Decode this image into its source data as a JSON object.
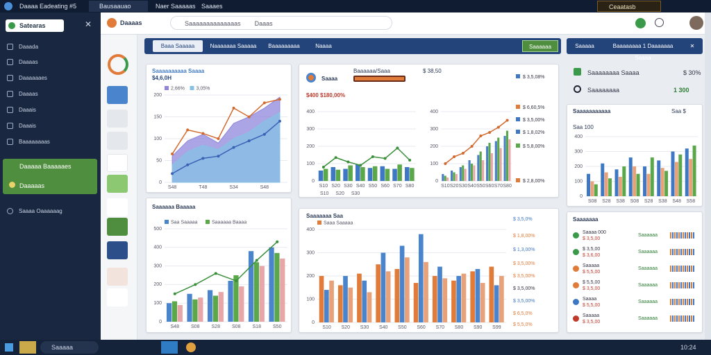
{
  "top_bar": {
    "tabs": [
      "Daaaa Eadeating #5",
      "Bausaauao",
      "Naer Saaaaas",
      "Saaaes"
    ],
    "account": "Ceaatasb"
  },
  "sidebar": {
    "search": "Satearas",
    "items": [
      "Daaada",
      "Daaaas",
      "Daaaaaaes",
      "Daaaas",
      "Daaais",
      "Daaais",
      "Baaaaaaaas"
    ],
    "active": [
      "Daaaaa Baaaaaes",
      "Daaaaas"
    ],
    "footer": "Saaaa Oaaaaaag"
  },
  "header": {
    "brand": "Daaaas",
    "search": "Saaaaaaaaaaaaaas",
    "filter": "Daaas"
  },
  "tabs": [
    "Baaa Saaaaa",
    "Naaaaaaa Saaaaa",
    "Baaaaaaaaa",
    "Naaaa",
    "Saaaaaa"
  ],
  "right_tabs": [
    "Saaaaa",
    "Baaaaaaaa 1 Daaaaaaa Saaaa"
  ],
  "stats": [
    {
      "label": "Saaaaaaaa Saaaa",
      "value": "$ 30%"
    },
    {
      "label": "Saaaaaaaa",
      "value": "1 300"
    }
  ],
  "panels": {
    "p1": {
      "title": "Saaaaaaaaaa Saaaa",
      "subtitle": "$4,6,0H"
    },
    "p2": {
      "title": "Saaaa",
      "subtitle": "Baaaaaa/Saaa",
      "note": "$ 38,50",
      "amount": "$400 $180,00%",
      "side": [
        "$ 3,5,08%",
        "$ 6,60,5%",
        "$ 3,5,00%",
        "$ 1,8,02%",
        "$ 5,8,00%",
        "$ 2,8,00%"
      ],
      "foot": [
        "S10",
        "S20",
        "S30"
      ]
    },
    "p3": {
      "title": "Saaaaaaaaaaa",
      "sub": "Saa 100",
      "tag": "Saa $"
    },
    "p4": {
      "title": "Saaaaaa Baaaaa"
    },
    "p5": {
      "title": "Saaaaaaa Saa",
      "side": [
        "$ 3,5,0%",
        "$ 1,8,00%",
        "$ 1,3,00%",
        "$ 3,5,00%",
        "$ 3,5,00%",
        "$ 3,5,00%",
        "$ 3,5,00%",
        "$ 6,5,0%",
        "$ 5,5,0%"
      ]
    }
  },
  "list": {
    "title": "Saaaaaaa",
    "rows": [
      {
        "name": "Saaaa 000",
        "value": "$ 3,5,00",
        "status": "Saaaaaa"
      },
      {
        "name": "$ 3,5,00",
        "value": "$ 3,6,00",
        "status": "Saaaaaa"
      },
      {
        "name": "Saaaaa",
        "value": "$ 5,5,00",
        "status": "Saaaaaa"
      },
      {
        "name": "$ 5,5,00",
        "value": "$ 3,5,00",
        "status": "Saaaaaa"
      },
      {
        "name": "Saaaa",
        "value": "$ 5,5,00",
        "status": "Saaaaaa"
      },
      {
        "name": "Saaaaa",
        "value": "$ 3,5,00",
        "status": "Saaaaaa"
      }
    ]
  },
  "taskbar": {
    "search": "Saaaaa",
    "time": "10:24"
  },
  "charts": [
    {
      "type": "area",
      "ylim": [
        0,
        200
      ],
      "yticks": [
        0,
        50,
        100,
        150,
        200
      ],
      "categories": [
        "S48",
        null,
        "T48",
        null,
        "S34",
        null,
        "S48",
        null
      ],
      "series": [
        {
          "name": "2,66%",
          "type": "area",
          "color": "#8f86dc",
          "values": [
            60,
            95,
            110,
            90,
            135,
            150,
            170,
            195
          ]
        },
        {
          "name": "3,05%",
          "type": "area",
          "color": "#86c2e4",
          "values": [
            40,
            70,
            85,
            75,
            100,
            115,
            140,
            160
          ]
        },
        {
          "type": "line",
          "color": "#d2692e",
          "values": [
            65,
            120,
            112,
            100,
            170,
            150,
            182,
            190
          ]
        },
        {
          "type": "line",
          "color": "#3a62b4",
          "values": [
            20,
            40,
            55,
            60,
            80,
            95,
            110,
            140
          ]
        }
      ]
    },
    {
      "type": "bar",
      "ylim": [
        0,
        400
      ],
      "yticks": [
        0,
        100,
        200,
        300,
        400
      ],
      "categories": [
        "S10",
        "S20",
        "S30",
        "S40",
        "S50",
        "S60",
        "S70",
        "S80"
      ],
      "series": [
        {
          "type": "bar",
          "color": "#3e78c4",
          "values": [
            60,
            80,
            70,
            95,
            75,
            85,
            70,
            80
          ]
        },
        {
          "type": "bar",
          "color": "#5aa84a",
          "values": [
            70,
            65,
            90,
            80,
            85,
            70,
            95,
            75
          ]
        },
        {
          "type": "line",
          "color": "#3a8f3a",
          "values": [
            80,
            135,
            110,
            90,
            140,
            130,
            190,
            120
          ]
        }
      ]
    },
    {
      "type": "bar",
      "ylim": [
        0,
        400
      ],
      "yticks": [
        0,
        100,
        200,
        300,
        400
      ],
      "categories": [
        "S10",
        "S20",
        "S30",
        "S40",
        "S50",
        "S60",
        "S70",
        "S80"
      ],
      "series": [
        {
          "type": "bar",
          "color": "#4a7fc6",
          "values": [
            40,
            60,
            80,
            120,
            150,
            200,
            230,
            260
          ]
        },
        {
          "type": "bar",
          "color": "#5aa84a",
          "values": [
            30,
            50,
            90,
            100,
            170,
            220,
            250,
            290
          ]
        },
        {
          "type": "bar",
          "color": "#e8a6a8",
          "values": [
            20,
            40,
            70,
            90,
            120,
            160,
            190,
            240
          ]
        },
        {
          "type": "line",
          "color": "#d2692e",
          "values": [
            100,
            140,
            160,
            200,
            260,
            280,
            310,
            350
          ]
        }
      ]
    },
    {
      "type": "bar",
      "ylim": [
        0,
        400
      ],
      "yticks": [
        0,
        100,
        200,
        300,
        400
      ],
      "categories": [
        "S08",
        "S28",
        "S38",
        "S08",
        "S28",
        "S38",
        "S48",
        "S58"
      ],
      "series": [
        {
          "type": "bar",
          "color": "#3e78c4",
          "values": [
            150,
            220,
            180,
            260,
            200,
            240,
            300,
            320
          ]
        },
        {
          "type": "bar",
          "color": "#e8a27a",
          "values": [
            100,
            160,
            130,
            200,
            150,
            190,
            230,
            250
          ]
        },
        {
          "type": "bar",
          "color": "#5aa84a",
          "values": [
            80,
            120,
            200,
            150,
            260,
            170,
            280,
            340
          ]
        }
      ]
    },
    {
      "type": "bar",
      "ylim": [
        0,
        500
      ],
      "yticks": [
        0,
        100,
        200,
        300,
        400,
        500
      ],
      "categories": [
        "S48",
        "S08",
        "S28",
        "S08",
        "S18",
        "S50"
      ],
      "series": [
        {
          "name": "Saa Saaaaa",
          "type": "bar",
          "color": "#4a84cc",
          "values": [
            100,
            150,
            170,
            220,
            380,
            400
          ]
        },
        {
          "name": "Saaaaaa Baaaa",
          "type": "bar",
          "color": "#5aa84a",
          "values": [
            110,
            120,
            140,
            250,
            320,
            370
          ]
        },
        {
          "type": "bar",
          "color": "#e8a6a8",
          "values": [
            90,
            130,
            160,
            190,
            300,
            340
          ]
        },
        {
          "type": "line",
          "color": "#3a8f3a",
          "values": [
            150,
            200,
            260,
            220,
            330,
            430
          ]
        }
      ]
    },
    {
      "type": "bar",
      "ylim": [
        0,
        400
      ],
      "yticks": [
        0,
        100,
        200,
        300,
        400
      ],
      "categories": [
        "S10",
        "S20",
        "S30",
        "S40",
        "S50",
        "S60",
        "S70",
        "S80",
        "S90",
        "S99"
      ],
      "series": [
        {
          "name": "Saaa Saaaaa",
          "type": "bar",
          "color": "#e07b39",
          "values": [
            200,
            160,
            210,
            250,
            230,
            170,
            200,
            180,
            220,
            240
          ]
        },
        {
          "type": "bar",
          "color": "#4a84cc",
          "values": [
            140,
            200,
            180,
            300,
            330,
            380,
            240,
            200,
            230,
            160
          ]
        },
        {
          "type": "bar",
          "color": "#e8a27a",
          "values": [
            180,
            150,
            130,
            220,
            280,
            260,
            190,
            210,
            170,
            200
          ]
        }
      ]
    }
  ]
}
